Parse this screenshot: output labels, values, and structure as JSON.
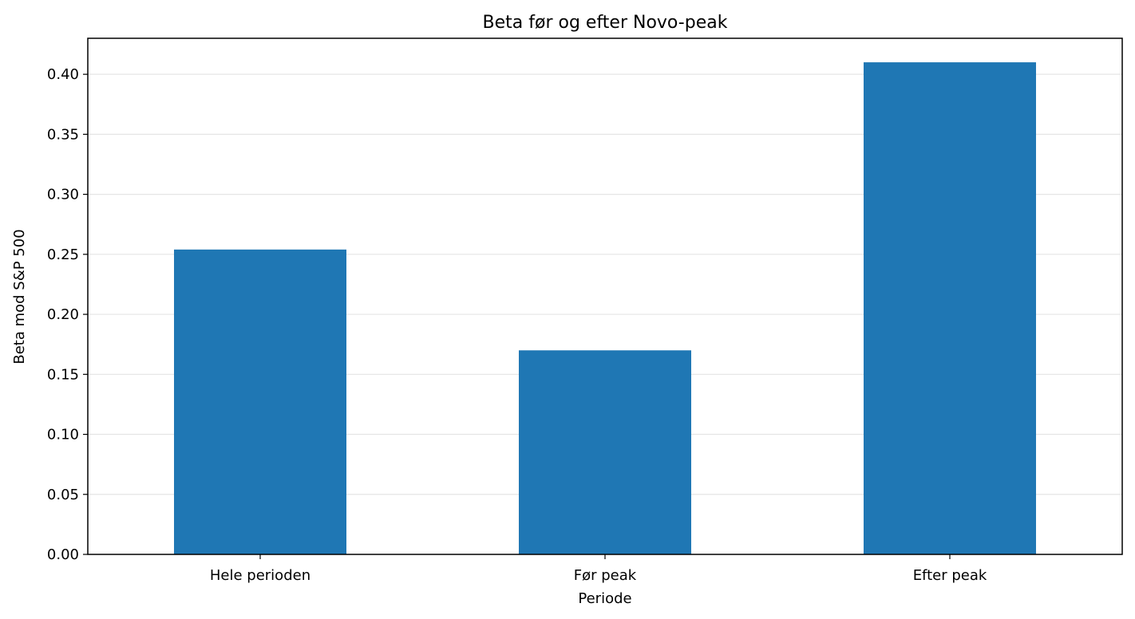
{
  "chart_data": {
    "type": "bar",
    "title": "Beta før og efter Novo-peak",
    "xlabel": "Periode",
    "ylabel": "Beta mod S&P 500",
    "categories": [
      "Hele perioden",
      "Før peak",
      "Efter peak"
    ],
    "values": [
      0.254,
      0.17,
      0.41
    ],
    "ylim": [
      0,
      0.43
    ],
    "yticks": [
      0.0,
      0.05,
      0.1,
      0.15,
      0.2,
      0.25,
      0.3,
      0.35,
      0.4
    ],
    "ytick_labels": [
      "0.00",
      "0.05",
      "0.10",
      "0.15",
      "0.20",
      "0.25",
      "0.30",
      "0.35",
      "0.40"
    ],
    "grid": "y",
    "legend": "none",
    "colors": {
      "bar": "#1f77b4",
      "grid": "#e5e5e5",
      "axis": "#000000"
    }
  }
}
